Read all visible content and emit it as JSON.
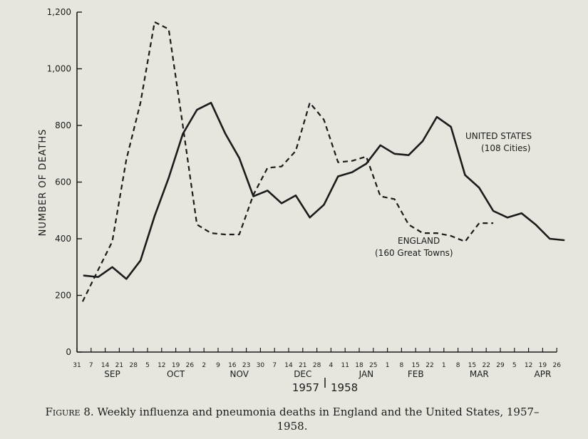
{
  "chart_data": {
    "type": "line",
    "ylabel": "NUMBER OF DEATHS",
    "ylim": [
      0,
      1200
    ],
    "yticks": [
      0,
      200,
      400,
      600,
      800,
      1000,
      1200
    ],
    "ytick_labels": [
      "0",
      "200",
      "400",
      "600",
      "800",
      "1,000",
      "1,200"
    ],
    "x_ticks": [
      "31",
      "7",
      "14",
      "21",
      "28",
      "5",
      "12",
      "19",
      "26",
      "2",
      "9",
      "16",
      "23",
      "30",
      "7",
      "14",
      "21",
      "28",
      "4",
      "11",
      "18",
      "25",
      "1",
      "8",
      "15",
      "22",
      "1",
      "8",
      "15",
      "22",
      "29",
      "5",
      "12",
      "19",
      "26"
    ],
    "months": [
      {
        "label": "SEP",
        "index": 2.5
      },
      {
        "label": "OCT",
        "index": 7
      },
      {
        "label": "NOV",
        "index": 11.5
      },
      {
        "label": "DEC",
        "index": 16
      },
      {
        "label": "JAN",
        "index": 20.5
      },
      {
        "label": "FEB",
        "index": 24
      },
      {
        "label": "MAR",
        "index": 28.5
      },
      {
        "label": "APR",
        "index": 33
      }
    ],
    "years": [
      "1957",
      "1958"
    ],
    "series": [
      {
        "name": "UNITED STATES",
        "sublabel": "(108 Cities)",
        "style": "solid",
        "x": [
          0.5,
          1.5,
          2.5,
          3.5,
          4.5,
          5.5,
          6.5,
          7.5,
          8.5,
          9.5,
          10.5,
          11.5,
          12.5,
          13.5,
          14.5,
          15.5,
          16.5,
          17.5,
          18.5,
          19.5,
          20.5,
          21.5,
          22.5,
          23.5,
          24.5,
          25.5,
          26.5,
          27.5,
          28.5,
          29.5,
          30.5,
          31.5,
          32.5,
          33.5,
          34.5
        ],
        "values": [
          270,
          265,
          300,
          258,
          323,
          480,
          615,
          770,
          855,
          880,
          772,
          685,
          550,
          570,
          525,
          553,
          475,
          520,
          620,
          635,
          665,
          730,
          700,
          695,
          745,
          830,
          795,
          625,
          580,
          498,
          475,
          490,
          450,
          400,
          395
        ]
      },
      {
        "name": "ENGLAND",
        "sublabel": "(160 Great Towns)",
        "style": "dashed",
        "x": [
          0.4,
          1.5,
          2.5,
          3.5,
          4.5,
          5.5,
          6.5,
          7.5,
          8.5,
          9.5,
          10.5,
          11.5,
          12.5,
          13.5,
          14.5,
          15.5,
          16.5,
          17.5,
          18.5,
          19.5,
          20.5,
          21.5,
          22.5,
          23.5,
          24.5,
          25.5,
          26.5,
          27.5,
          28.5,
          29.5
        ],
        "values": [
          178,
          290,
          390,
          680,
          880,
          1165,
          1140,
          800,
          450,
          420,
          415,
          415,
          555,
          650,
          655,
          710,
          880,
          820,
          670,
          675,
          690,
          550,
          540,
          450,
          420,
          420,
          410,
          390,
          455,
          455
        ]
      }
    ]
  },
  "caption": {
    "figure": "Figure 8.",
    "text": "Weekly influenza and pneumonia deaths in England and the United States, 1957–1958."
  },
  "colors": {
    "line": "#1b1b1b",
    "background": "#e6e6df"
  }
}
